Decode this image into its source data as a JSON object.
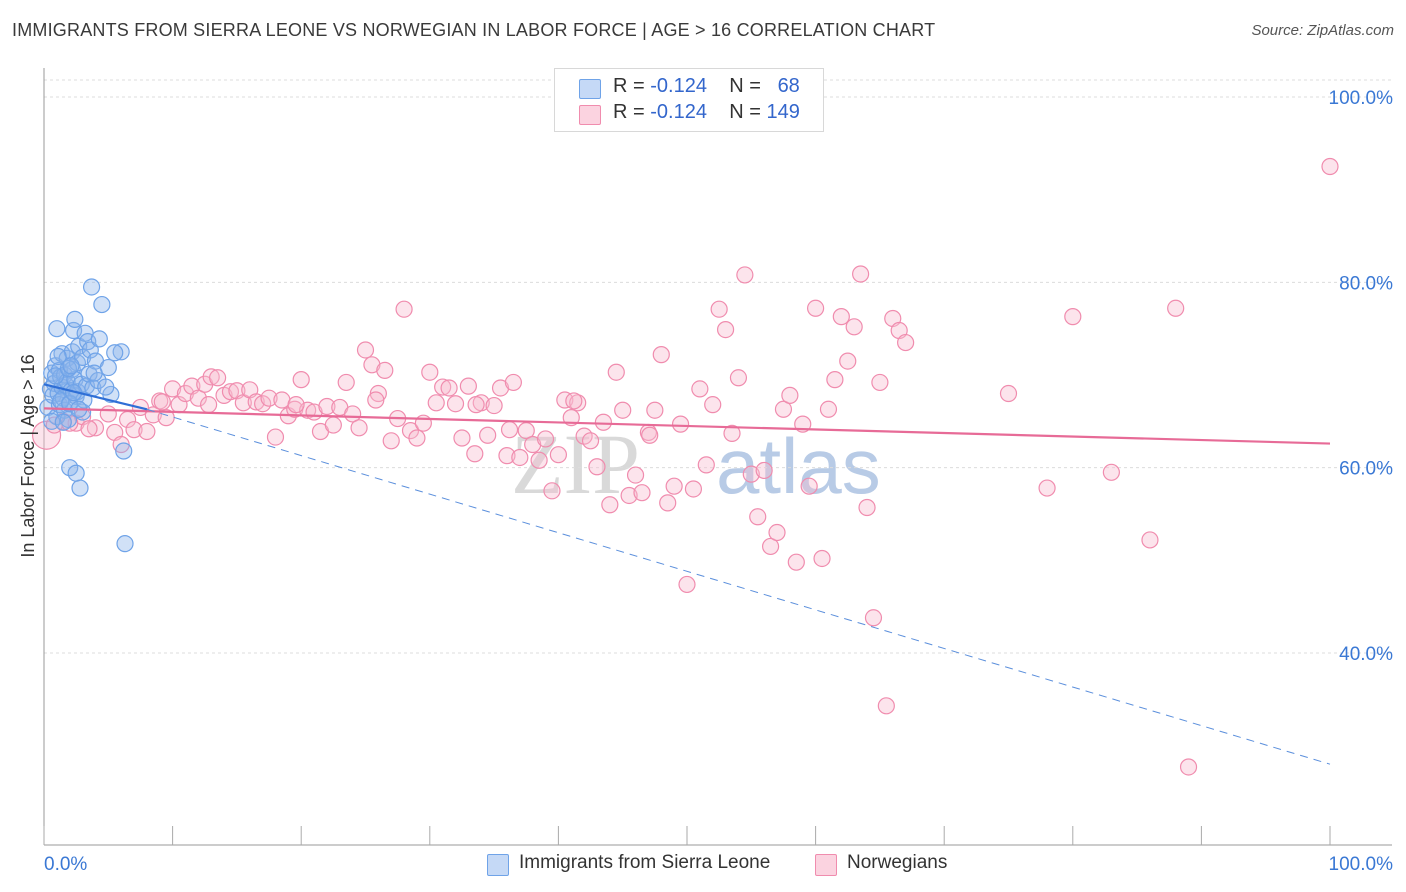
{
  "title": "IMMIGRANTS FROM SIERRA LEONE VS NORWEGIAN IN LABOR FORCE | AGE > 16 CORRELATION CHART",
  "source": "Source: ZipAtlas.com",
  "watermark": {
    "zip": "ZIP",
    "atlas": "atlas"
  },
  "stats": [
    {
      "r_label": "R =",
      "r_value": "-0.124",
      "n_label": "N =",
      "n_value": "68",
      "color": "#a9c6f2"
    },
    {
      "r_label": "R =",
      "r_value": "-0.124",
      "n_label": "N =",
      "n_value": "149",
      "color": "#f7bcd0"
    }
  ],
  "legend": [
    {
      "label": "Immigrants from Sierra Leone",
      "color": "#a9c6f2"
    },
    {
      "label": "Norwegians",
      "color": "#f7bcd0"
    }
  ],
  "chart_data": {
    "type": "scatter",
    "xlabel": "",
    "ylabel": "In Labor Force | Age > 16",
    "xlim": [
      0,
      100
    ],
    "ylim": [
      20,
      105
    ],
    "x_tick_labels": [
      "0.0%",
      "100.0%"
    ],
    "y_ticks": [
      40,
      60,
      80,
      100
    ],
    "y_tick_labels": [
      "40.0%",
      "60.0%",
      "80.0%",
      "100.0%"
    ],
    "grid": true,
    "series": [
      {
        "name": "Immigrants from Sierra Leone",
        "color": "#6fa3e8",
        "points": [
          [
            0.3,
            66.5
          ],
          [
            0.5,
            68.5
          ],
          [
            0.6,
            70.2
          ],
          [
            0.7,
            67.8
          ],
          [
            0.8,
            69.1
          ],
          [
            0.9,
            71.0
          ],
          [
            1.0,
            75.0
          ],
          [
            1.0,
            65.5
          ],
          [
            1.1,
            68.0
          ],
          [
            1.2,
            66.8
          ],
          [
            1.2,
            70.5
          ],
          [
            1.3,
            69.8
          ],
          [
            1.4,
            68.7
          ],
          [
            1.4,
            72.3
          ],
          [
            1.5,
            67.5
          ],
          [
            1.6,
            70.0
          ],
          [
            1.6,
            66.2
          ],
          [
            1.7,
            68.9
          ],
          [
            1.8,
            71.8
          ],
          [
            1.8,
            69.3
          ],
          [
            1.9,
            65.2
          ],
          [
            2.0,
            60.0
          ],
          [
            2.0,
            67.0
          ],
          [
            2.1,
            68.3
          ],
          [
            2.2,
            72.5
          ],
          [
            2.2,
            70.6
          ],
          [
            2.3,
            74.8
          ],
          [
            2.4,
            76.0
          ],
          [
            2.4,
            69.5
          ],
          [
            2.5,
            67.7
          ],
          [
            2.6,
            71.3
          ],
          [
            2.6,
            68.2
          ],
          [
            2.7,
            73.1
          ],
          [
            2.8,
            57.8
          ],
          [
            2.9,
            69.0
          ],
          [
            3.0,
            66.0
          ],
          [
            3.0,
            71.9
          ],
          [
            3.1,
            67.3
          ],
          [
            3.2,
            74.5
          ],
          [
            3.3,
            68.8
          ],
          [
            3.4,
            73.6
          ],
          [
            3.5,
            70.1
          ],
          [
            3.6,
            72.7
          ],
          [
            3.8,
            68.6
          ],
          [
            4.0,
            71.5
          ],
          [
            4.2,
            69.4
          ],
          [
            2.5,
            59.4
          ],
          [
            0.6,
            65.0
          ],
          [
            1.3,
            67.2
          ],
          [
            1.5,
            64.9
          ],
          [
            2.0,
            66.9
          ],
          [
            2.3,
            68.1
          ],
          [
            4.5,
            77.6
          ],
          [
            5.0,
            70.8
          ],
          [
            3.7,
            79.5
          ],
          [
            5.2,
            67.9
          ],
          [
            6.0,
            72.5
          ],
          [
            6.2,
            61.8
          ],
          [
            6.3,
            51.8
          ],
          [
            0.9,
            69.9
          ],
          [
            1.9,
            70.7
          ],
          [
            2.7,
            66.3
          ],
          [
            3.9,
            70.2
          ],
          [
            4.3,
            73.9
          ],
          [
            5.5,
            72.4
          ],
          [
            1.1,
            72.0
          ],
          [
            2.1,
            71.0
          ],
          [
            4.8,
            68.7
          ]
        ],
        "trend": {
          "x1": 0,
          "y1": 69.0,
          "x2": 8,
          "y2": 66.3,
          "style": "solid"
        },
        "trend_extension": {
          "x1": 8,
          "y1": 66.3,
          "x2": 100,
          "y2": 28.0,
          "style": "dashed"
        }
      },
      {
        "name": "Norwegians",
        "color": "#f08cae",
        "points": [
          [
            0.2,
            63.5
          ],
          [
            1.5,
            65.0
          ],
          [
            2.5,
            64.8
          ],
          [
            3.0,
            65.5
          ],
          [
            4.0,
            64.3
          ],
          [
            5.0,
            65.8
          ],
          [
            5.5,
            63.8
          ],
          [
            6.0,
            62.5
          ],
          [
            6.5,
            65.2
          ],
          [
            7.0,
            64.1
          ],
          [
            7.5,
            66.5
          ],
          [
            8.0,
            63.9
          ],
          [
            8.5,
            65.7
          ],
          [
            9.0,
            67.2
          ],
          [
            9.5,
            65.4
          ],
          [
            10.0,
            68.5
          ],
          [
            10.5,
            66.8
          ],
          [
            11.0,
            68.0
          ],
          [
            11.5,
            68.8
          ],
          [
            12.0,
            67.5
          ],
          [
            12.5,
            69.0
          ],
          [
            13.0,
            69.8
          ],
          [
            13.5,
            69.7
          ],
          [
            14.0,
            67.8
          ],
          [
            14.5,
            68.2
          ],
          [
            15.0,
            68.3
          ],
          [
            15.5,
            67.0
          ],
          [
            16.0,
            68.4
          ],
          [
            16.5,
            67.1
          ],
          [
            17.0,
            66.9
          ],
          [
            17.5,
            67.5
          ],
          [
            18.0,
            63.3
          ],
          [
            18.5,
            67.3
          ],
          [
            19.0,
            65.6
          ],
          [
            19.5,
            66.3
          ],
          [
            20.0,
            69.5
          ],
          [
            20.5,
            66.2
          ],
          [
            21.0,
            66.0
          ],
          [
            21.5,
            63.9
          ],
          [
            22.0,
            66.6
          ],
          [
            22.5,
            64.6
          ],
          [
            23.0,
            66.5
          ],
          [
            23.5,
            69.2
          ],
          [
            24.0,
            65.8
          ],
          [
            24.5,
            64.3
          ],
          [
            25.0,
            72.7
          ],
          [
            25.5,
            71.1
          ],
          [
            26.0,
            68.0
          ],
          [
            26.5,
            70.5
          ],
          [
            27.0,
            62.9
          ],
          [
            27.5,
            65.3
          ],
          [
            28.0,
            77.1
          ],
          [
            28.5,
            64.0
          ],
          [
            29.0,
            63.2
          ],
          [
            29.5,
            64.8
          ],
          [
            30.0,
            70.3
          ],
          [
            30.5,
            67.0
          ],
          [
            31.0,
            68.7
          ],
          [
            31.5,
            68.6
          ],
          [
            32.0,
            66.9
          ],
          [
            32.5,
            63.2
          ],
          [
            33.0,
            68.8
          ],
          [
            33.5,
            61.5
          ],
          [
            34.0,
            67.0
          ],
          [
            34.5,
            63.5
          ],
          [
            35.0,
            66.7
          ],
          [
            35.5,
            68.6
          ],
          [
            36.0,
            61.3
          ],
          [
            36.5,
            69.2
          ],
          [
            37.0,
            61.1
          ],
          [
            37.5,
            64.0
          ],
          [
            38.0,
            62.5
          ],
          [
            38.5,
            60.8
          ],
          [
            39.0,
            63.1
          ],
          [
            39.5,
            57.5
          ],
          [
            40.0,
            61.4
          ],
          [
            40.5,
            67.3
          ],
          [
            41.0,
            65.4
          ],
          [
            41.5,
            67.0
          ],
          [
            42.0,
            63.4
          ],
          [
            42.5,
            62.9
          ],
          [
            43.0,
            60.1
          ],
          [
            43.5,
            64.9
          ],
          [
            44.0,
            56.0
          ],
          [
            44.5,
            70.3
          ],
          [
            45.0,
            66.2
          ],
          [
            45.5,
            57.0
          ],
          [
            46.0,
            59.2
          ],
          [
            46.5,
            57.3
          ],
          [
            47.0,
            63.8
          ],
          [
            47.5,
            66.2
          ],
          [
            48.0,
            72.2
          ],
          [
            48.5,
            56.2
          ],
          [
            49.0,
            58.0
          ],
          [
            49.5,
            64.7
          ],
          [
            50.0,
            47.4
          ],
          [
            50.5,
            57.7
          ],
          [
            51.0,
            68.5
          ],
          [
            51.5,
            60.3
          ],
          [
            52.0,
            66.8
          ],
          [
            52.5,
            77.1
          ],
          [
            53.0,
            74.9
          ],
          [
            53.5,
            63.7
          ],
          [
            54.0,
            69.7
          ],
          [
            54.5,
            80.8
          ],
          [
            55.0,
            59.3
          ],
          [
            55.5,
            54.7
          ],
          [
            56.0,
            59.7
          ],
          [
            56.5,
            51.5
          ],
          [
            57.0,
            53.0
          ],
          [
            57.5,
            66.3
          ],
          [
            58.0,
            67.8
          ],
          [
            58.5,
            49.8
          ],
          [
            59.0,
            64.7
          ],
          [
            59.5,
            58.0
          ],
          [
            60.0,
            77.2
          ],
          [
            60.5,
            50.2
          ],
          [
            61.0,
            66.3
          ],
          [
            61.5,
            69.5
          ],
          [
            62.0,
            76.3
          ],
          [
            62.5,
            71.5
          ],
          [
            63.0,
            75.2
          ],
          [
            63.5,
            80.9
          ],
          [
            64.0,
            55.7
          ],
          [
            64.5,
            43.8
          ],
          [
            65.0,
            69.2
          ],
          [
            65.5,
            34.3
          ],
          [
            66.0,
            76.1
          ],
          [
            66.5,
            74.8
          ],
          [
            67.0,
            73.5
          ],
          [
            75.0,
            68.0
          ],
          [
            78.0,
            57.8
          ],
          [
            80.0,
            76.3
          ],
          [
            83.0,
            59.5
          ],
          [
            86.0,
            52.2
          ],
          [
            88.0,
            77.2
          ],
          [
            89.0,
            27.7
          ],
          [
            100.0,
            92.5
          ],
          [
            0.8,
            64.6
          ],
          [
            2.0,
            64.8
          ],
          [
            3.5,
            64.2
          ],
          [
            9.2,
            67.1
          ],
          [
            12.8,
            66.8
          ],
          [
            19.6,
            66.8
          ],
          [
            25.8,
            67.3
          ],
          [
            33.6,
            66.8
          ],
          [
            36.2,
            64.1
          ],
          [
            41.2,
            67.2
          ],
          [
            47.1,
            63.5
          ]
        ],
        "trend": {
          "x1": 0,
          "y1": 66.4,
          "x2": 100,
          "y2": 62.6,
          "style": "solid"
        }
      }
    ]
  }
}
